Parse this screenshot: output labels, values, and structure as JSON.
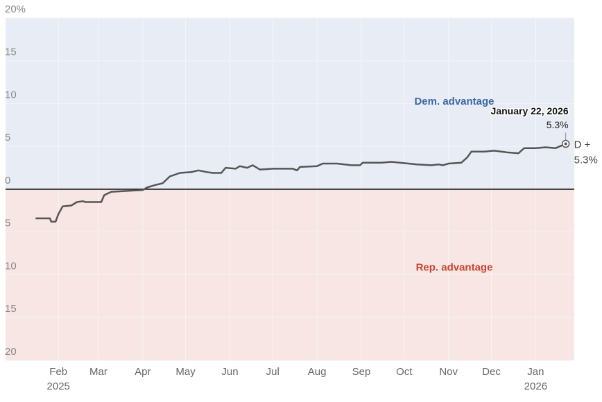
{
  "chart_data": {
    "type": "line",
    "x": [
      "2025-01-16",
      "2025-01-26",
      "2025-01-27",
      "2025-01-30",
      "2025-02-01",
      "2025-02-04",
      "2025-02-10",
      "2025-02-14",
      "2025-02-18",
      "2025-02-20",
      "2025-03-03",
      "2025-03-05",
      "2025-03-10",
      "2025-03-20",
      "2025-04-01",
      "2025-04-04",
      "2025-04-10",
      "2025-04-15",
      "2025-04-20",
      "2025-04-27",
      "2025-05-05",
      "2025-05-10",
      "2025-05-16",
      "2025-05-20",
      "2025-05-26",
      "2025-05-29",
      "2025-06-05",
      "2025-06-08",
      "2025-06-13",
      "2025-06-17",
      "2025-06-22",
      "2025-07-01",
      "2025-07-15",
      "2025-07-18",
      "2025-07-20",
      "2025-08-01",
      "2025-08-05",
      "2025-08-15",
      "2025-08-25",
      "2025-08-31",
      "2025-09-02",
      "2025-09-15",
      "2025-09-22",
      "2025-09-28",
      "2025-10-10",
      "2025-10-20",
      "2025-10-25",
      "2025-10-28",
      "2025-11-01",
      "2025-11-10",
      "2025-11-14",
      "2025-11-17",
      "2025-11-26",
      "2025-12-03",
      "2025-12-12",
      "2025-12-20",
      "2025-12-24",
      "2026-01-01",
      "2026-01-08",
      "2026-01-15",
      "2026-01-22"
    ],
    "series": [
      {
        "color": "#555555",
        "values": [
          -3.4,
          -3.4,
          -3.8,
          -3.8,
          -2.9,
          -2.0,
          -1.9,
          -1.5,
          -1.4,
          -1.5,
          -1.5,
          -0.7,
          -0.3,
          -0.2,
          -0.1,
          0.2,
          0.5,
          0.7,
          1.5,
          1.9,
          2.0,
          2.2,
          2.0,
          1.9,
          1.9,
          2.5,
          2.4,
          2.7,
          2.5,
          2.8,
          2.3,
          2.4,
          2.4,
          2.2,
          2.6,
          2.7,
          3.0,
          3.0,
          2.8,
          2.8,
          3.1,
          3.1,
          3.2,
          3.1,
          2.9,
          2.8,
          2.9,
          2.8,
          3.0,
          3.1,
          3.7,
          4.4,
          4.4,
          4.5,
          4.3,
          4.2,
          4.8,
          4.8,
          4.9,
          4.8,
          5.3
        ]
      }
    ],
    "xlim": [
      "2024-12-26",
      "2026-01-28"
    ],
    "xticks": [
      {
        "value": "2025-02-01",
        "label": "Feb",
        "year": "2025"
      },
      {
        "value": "2025-03-01",
        "label": "Mar"
      },
      {
        "value": "2025-04-01",
        "label": "Apr"
      },
      {
        "value": "2025-05-01",
        "label": "May"
      },
      {
        "value": "2025-06-01",
        "label": "Jun"
      },
      {
        "value": "2025-07-01",
        "label": "Jul"
      },
      {
        "value": "2025-08-01",
        "label": "Aug"
      },
      {
        "value": "2025-09-01",
        "label": "Sep"
      },
      {
        "value": "2025-10-01",
        "label": "Oct"
      },
      {
        "value": "2025-11-01",
        "label": "Nov"
      },
      {
        "value": "2025-12-01",
        "label": "Dec"
      },
      {
        "value": "2026-01-01",
        "label": "Jan",
        "year": "2026"
      }
    ],
    "ylim": [
      -20,
      20
    ],
    "yticks": [
      {
        "value": -20,
        "label": "20"
      },
      {
        "value": -15,
        "label": "15"
      },
      {
        "value": -10,
        "label": "10"
      },
      {
        "value": -5,
        "label": "5"
      },
      0,
      5,
      10,
      15,
      {
        "value": 20,
        "label": "20%"
      }
    ],
    "grid": true,
    "positive_color": "#e8edf5",
    "negative_color": "#f7e6e4",
    "annotations": {
      "positive_label": "Dem. advantage",
      "negative_label": "Rep. advantage",
      "last_date_label": "January 22, 2026",
      "last_value_label": "5.3%",
      "end_prefix": "D +",
      "end_value_label": "5.3%"
    }
  }
}
